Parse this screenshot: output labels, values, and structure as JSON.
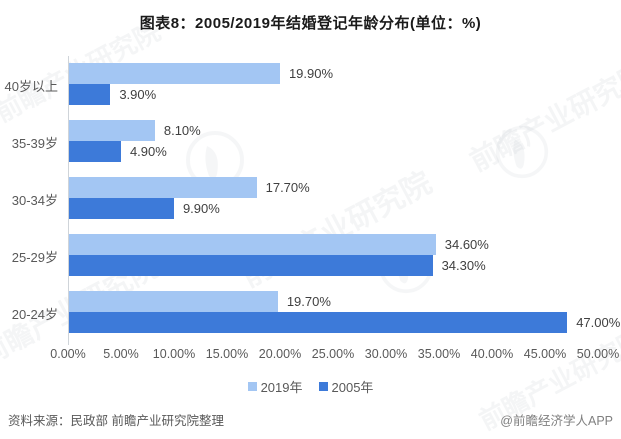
{
  "title": "图表8：2005/2019年结婚登记年龄分布(单位：%)",
  "colors": {
    "series_2019": "#a3c6f3",
    "series_2005": "#3d7ad9",
    "axis_line": "#cfd4d9",
    "title_text": "#1a1a1a",
    "muted_text": "#595959"
  },
  "chart_data": {
    "type": "bar",
    "orientation": "horizontal",
    "title": "图表8：2005/2019年结婚登记年龄分布(单位：%)",
    "categories": [
      "40岁以上",
      "35-39岁",
      "30-34岁",
      "25-29岁",
      "20-24岁"
    ],
    "series": [
      {
        "name": "2019年",
        "color": "#a3c6f3",
        "values": [
          19.9,
          8.1,
          17.7,
          34.6,
          19.7
        ],
        "labels": [
          "19.90%",
          "8.10%",
          "17.70%",
          "34.60%",
          "19.70%"
        ]
      },
      {
        "name": "2005年",
        "color": "#3d7ad9",
        "values": [
          3.9,
          4.9,
          9.9,
          34.3,
          47.0
        ],
        "labels": [
          "3.90%",
          "4.90%",
          "9.90%",
          "34.30%",
          "47.00%"
        ]
      }
    ],
    "xlim": [
      0,
      50
    ],
    "x_ticks": [
      "0.00%",
      "5.00%",
      "10.00%",
      "15.00%",
      "20.00%",
      "25.00%",
      "30.00%",
      "35.00%",
      "40.00%",
      "45.00%",
      "50.00%"
    ],
    "grid": false,
    "legend_position": "bottom"
  },
  "legend": [
    {
      "label": "2019年",
      "color": "#a3c6f3"
    },
    {
      "label": "2005年",
      "color": "#3d7ad9"
    }
  ],
  "footer": {
    "source": "资料来源：民政部 前瞻产业研究院整理",
    "credit": "@前瞻经济学人APP"
  },
  "watermark": {
    "text": "前瞻产业研究院"
  }
}
